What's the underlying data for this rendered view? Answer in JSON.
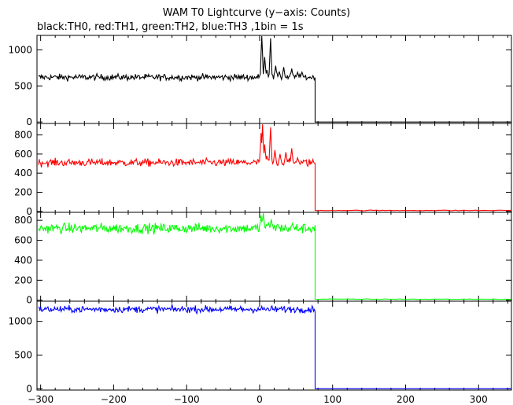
{
  "chart_data": {
    "type": "line",
    "title": "WAM T0 Lightcurve (y−axis: Counts)",
    "subtitle": "black:TH0, red:TH1, green:TH2, blue:TH3 ,1bin = 1s",
    "xlim": [
      -305,
      345
    ],
    "x_ticks": [
      -300,
      -200,
      -100,
      0,
      100,
      200,
      300
    ],
    "x_tick_labels": [
      "−300",
      "−200",
      "−100",
      "0",
      "100",
      "200",
      "300"
    ],
    "grid": false,
    "legend": "none (series described in subtitle)",
    "panels": [
      {
        "series": "TH0",
        "color": "#000000",
        "ylim": [
          -20,
          1200
        ],
        "y_ticks": [
          0,
          500,
          1000
        ],
        "y_tick_labels": [
          "0",
          "500",
          "1000"
        ],
        "baseline": 620,
        "noise": 22,
        "drop_x": 76,
        "post_value": 0,
        "bursts": [
          [
            3,
            1250
          ],
          [
            7,
            900
          ],
          [
            10,
            720
          ],
          [
            15,
            1160
          ],
          [
            22,
            780
          ],
          [
            27,
            700
          ],
          [
            33,
            760
          ],
          [
            44,
            740
          ],
          [
            52,
            690
          ],
          [
            58,
            690
          ]
        ]
      },
      {
        "series": "TH1",
        "color": "#ff0000",
        "ylim": [
          -10,
          920
        ],
        "y_ticks": [
          0,
          200,
          400,
          600,
          800
        ],
        "y_tick_labels": [
          "0",
          "200",
          "400",
          "600",
          "800"
        ],
        "baseline": 510,
        "noise": 20,
        "drop_x": 76,
        "post_value": 10,
        "bursts": [
          [
            2,
            820
          ],
          [
            4,
            910
          ],
          [
            7,
            700
          ],
          [
            10,
            580
          ],
          [
            15,
            880
          ],
          [
            21,
            640
          ],
          [
            28,
            600
          ],
          [
            36,
            620
          ],
          [
            44,
            660
          ],
          [
            52,
            560
          ]
        ]
      },
      {
        "series": "TH2",
        "color": "#00ff00",
        "ylim": [
          -10,
          880
        ],
        "y_ticks": [
          0,
          200,
          400,
          600,
          800
        ],
        "y_tick_labels": [
          "0",
          "200",
          "400",
          "600",
          "800"
        ],
        "baseline": 720,
        "noise": 25,
        "drop_x": 76,
        "post_value": 10,
        "bursts": [
          [
            2,
            850
          ],
          [
            5,
            880
          ],
          [
            12,
            780
          ],
          [
            16,
            810
          ],
          [
            25,
            760
          ],
          [
            45,
            770
          ]
        ]
      },
      {
        "series": "TH3",
        "color": "#0000ff",
        "ylim": [
          -20,
          1300
        ],
        "y_ticks": [
          0,
          500,
          1000
        ],
        "y_tick_labels": [
          "0",
          "500",
          "1000"
        ],
        "baseline": 1180,
        "noise": 25,
        "drop_x": 76,
        "post_value": 0,
        "bursts": []
      }
    ]
  }
}
